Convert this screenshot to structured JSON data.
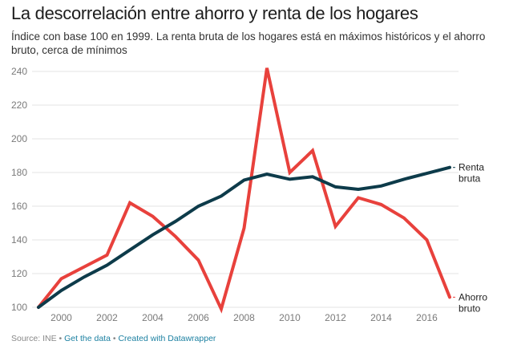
{
  "header": {
    "title": "La descorrelación entre ahorro y renta de los hogares",
    "subtitle": "Índice con base 100 en 1999. La renta bruta de los hogares está en máximos históricos y el ahorro bruto, cerca de mínimos"
  },
  "footer": {
    "source": "Source: INE",
    "sep": " • ",
    "get_data": "Get the data",
    "created": "Created with Datawrapper"
  },
  "chart_data": {
    "type": "line",
    "title": "La descorrelación entre ahorro y renta de los hogares",
    "xlabel": "",
    "ylabel": "",
    "x": [
      1999,
      2000,
      2001,
      2002,
      2003,
      2004,
      2005,
      2006,
      2007,
      2008,
      2009,
      2010,
      2011,
      2012,
      2013,
      2014,
      2015,
      2016,
      2017
    ],
    "xticks": [
      2000,
      2002,
      2004,
      2006,
      2008,
      2010,
      2012,
      2014,
      2016
    ],
    "yticks": [
      100,
      120,
      140,
      160,
      180,
      200,
      220,
      240
    ],
    "ylim": [
      100,
      240
    ],
    "grid": true,
    "series": [
      {
        "name": "Renta bruta",
        "label_lines": [
          "Renta",
          "bruta"
        ],
        "color": "#0d3b4a",
        "values": [
          100,
          110,
          118,
          125,
          134,
          143,
          151,
          160,
          166,
          175.5,
          179,
          176,
          177.5,
          171.5,
          170,
          172,
          176,
          179.5,
          183
        ]
      },
      {
        "name": "Ahorro bruto",
        "label_lines": [
          "Ahorro",
          "bruto"
        ],
        "color": "#e8413c",
        "values": [
          100,
          117,
          124,
          131,
          162,
          154,
          142,
          128,
          99,
          147,
          242,
          180,
          193,
          148,
          165,
          161,
          153,
          140,
          106
        ]
      }
    ]
  }
}
